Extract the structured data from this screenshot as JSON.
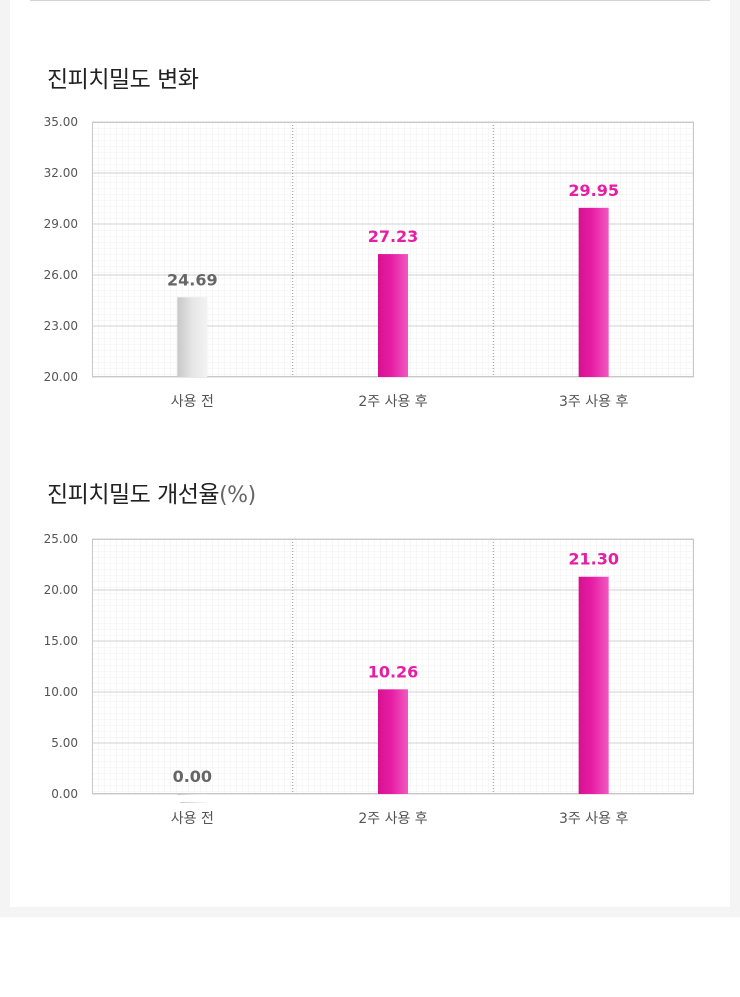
{
  "colors": {
    "accent": "#e61ea5",
    "gray_bar": "#d9d9d9",
    "gray_label": "#666666",
    "grid": "#d0d0d0"
  },
  "charts": [
    {
      "title": "진피치밀도 변화",
      "title_suffix": ""
    },
    {
      "title": "진피치밀도 개선율",
      "title_suffix": "(%)"
    }
  ],
  "chart_data": [
    {
      "type": "bar",
      "title": "진피치밀도 변화",
      "categories": [
        "사용 전",
        "2주 사용 후",
        "3주 사용 후"
      ],
      "values": [
        24.69,
        27.23,
        29.95
      ],
      "value_labels": [
        "24.69",
        "27.23",
        "29.95"
      ],
      "ylim": [
        20,
        35
      ],
      "yticks": [
        "20.00",
        "23.00",
        "26.00",
        "29.00",
        "32.00",
        "35.00"
      ],
      "ytick_values": [
        20,
        23,
        26,
        29,
        32,
        35
      ],
      "bar_styles": [
        "gray",
        "accent",
        "accent"
      ],
      "grid": true
    },
    {
      "type": "bar",
      "title": "진피치밀도 개선율(%)",
      "categories": [
        "사용 전",
        "2주 사용 후",
        "3주 사용 후"
      ],
      "values": [
        0.0,
        10.26,
        21.3
      ],
      "value_labels": [
        "0.00",
        "10.26",
        "21.30"
      ],
      "ylim": [
        0,
        25
      ],
      "yticks": [
        "0.00",
        "5.00",
        "10.00",
        "15.00",
        "20.00",
        "25.00"
      ],
      "ytick_values": [
        0,
        5,
        10,
        15,
        20,
        25
      ],
      "bar_styles": [
        "gray",
        "accent",
        "accent"
      ],
      "grid": true
    }
  ]
}
